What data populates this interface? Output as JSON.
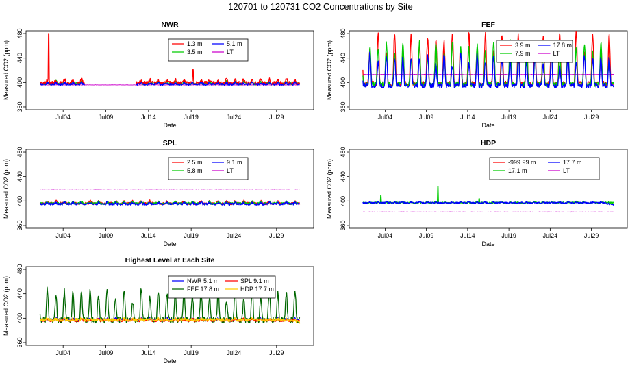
{
  "page_title": "120701  to  120731 CO2 Concentrations by Site",
  "chart_data": [
    {
      "type": "line",
      "title": "NWR",
      "xlabel": "Date",
      "ylabel": "Measured CO2 (ppm)",
      "x_range_days": [
        0,
        31
      ],
      "x_ticks": [
        {
          "day": 3,
          "label": "Jul04"
        },
        {
          "day": 8,
          "label": "Jul09"
        },
        {
          "day": 13,
          "label": "Jul14"
        },
        {
          "day": 18,
          "label": "Jul19"
        },
        {
          "day": 23,
          "label": "Jul24"
        },
        {
          "day": 28,
          "label": "Jul29"
        }
      ],
      "ylim": [
        360,
        480
      ],
      "y_ticks": [
        360,
        400,
        440,
        480
      ],
      "legend": [
        {
          "label": "1.3 m",
          "color": "#ff0000"
        },
        {
          "label": "5.1 m",
          "color": "#0000ff"
        },
        {
          "label": "3.5 m",
          "color": "#00cc00"
        },
        {
          "label": "LT",
          "color": "#cc00cc"
        }
      ],
      "series": [
        {
          "name": "LT",
          "color": "#cc00cc",
          "base": 396,
          "amp": 0,
          "noise": 0.3,
          "gaps": [],
          "shift": 0
        },
        {
          "name": "3.5 m",
          "color": "#00cc00",
          "base": 398,
          "amp": 4,
          "noise": 2,
          "gaps": [
            [
              5.5,
              11.5
            ]
          ],
          "shift": 0
        },
        {
          "name": "1.3 m",
          "color": "#ff0000",
          "base": 399,
          "amp": 6,
          "noise": 3,
          "gaps": [
            [
              5.5,
              11.5
            ]
          ],
          "shift": 0,
          "spikes": [
            [
              1.3,
              480
            ],
            [
              18.2,
              421
            ]
          ]
        },
        {
          "name": "5.1 m",
          "color": "#0000ff",
          "base": 397,
          "amp": 3,
          "noise": 1.8,
          "gaps": [
            [
              5.5,
              11.5
            ]
          ],
          "shift": 0
        }
      ]
    },
    {
      "type": "line",
      "title": "FEF",
      "xlabel": "Date",
      "ylabel": "Measured CO2 (ppm)",
      "x_range_days": [
        0,
        31
      ],
      "x_ticks": [
        {
          "day": 3,
          "label": "Jul04"
        },
        {
          "day": 8,
          "label": "Jul09"
        },
        {
          "day": 13,
          "label": "Jul14"
        },
        {
          "day": 18,
          "label": "Jul19"
        },
        {
          "day": 23,
          "label": "Jul24"
        },
        {
          "day": 28,
          "label": "Jul29"
        }
      ],
      "ylim": [
        360,
        480
      ],
      "y_ticks": [
        360,
        400,
        440,
        480
      ],
      "legend": [
        {
          "label": "3.9 m",
          "color": "#ff0000"
        },
        {
          "label": "17.8 m",
          "color": "#0000ff"
        },
        {
          "label": "7.9 m",
          "color": "#00cc00"
        },
        {
          "label": "LT",
          "color": "#cc00cc"
        }
      ],
      "series": [
        {
          "name": "LT",
          "color": "#cc00cc",
          "base": 413,
          "amp": 0,
          "noise": 0.4,
          "gaps": [],
          "shift": 0
        },
        {
          "name": "3.9 m",
          "color": "#ff0000",
          "base": 398,
          "amp": 85,
          "noise": 4,
          "gaps": [],
          "shift": 0
        },
        {
          "name": "7.9 m",
          "color": "#00cc00",
          "base": 397,
          "amp": 70,
          "noise": 4,
          "gaps": [],
          "shift": 0
        },
        {
          "name": "17.8 m",
          "color": "#0000ff",
          "base": 395,
          "amp": 52,
          "noise": 4,
          "gaps": [],
          "shift": 0
        }
      ]
    },
    {
      "type": "line",
      "title": "SPL",
      "xlabel": "Date",
      "ylabel": "Measured CO2 (ppm)",
      "x_range_days": [
        0,
        31
      ],
      "x_ticks": [
        {
          "day": 3,
          "label": "Jul04"
        },
        {
          "day": 8,
          "label": "Jul09"
        },
        {
          "day": 13,
          "label": "Jul14"
        },
        {
          "day": 18,
          "label": "Jul19"
        },
        {
          "day": 23,
          "label": "Jul24"
        },
        {
          "day": 28,
          "label": "Jul29"
        }
      ],
      "ylim": [
        360,
        480
      ],
      "y_ticks": [
        360,
        400,
        440,
        480
      ],
      "legend": [
        {
          "label": "2.5 m",
          "color": "#ff0000"
        },
        {
          "label": "9.1 m",
          "color": "#0000ff"
        },
        {
          "label": "5.8 m",
          "color": "#00cc00"
        },
        {
          "label": "LT",
          "color": "#cc00cc"
        }
      ],
      "series": [
        {
          "name": "LT",
          "color": "#cc00cc",
          "base": 418,
          "amp": 0,
          "noise": 0.3,
          "gaps": [],
          "shift": 0
        },
        {
          "name": "2.5 m",
          "color": "#ff0000",
          "base": 396,
          "amp": 4,
          "noise": 2,
          "gaps": [],
          "shift": 0
        },
        {
          "name": "5.8 m",
          "color": "#00cc00",
          "base": 396,
          "amp": 3,
          "noise": 1.8,
          "gaps": [],
          "shift": 0
        },
        {
          "name": "9.1 m",
          "color": "#0000ff",
          "base": 395,
          "amp": 3,
          "noise": 1.8,
          "gaps": [],
          "shift": 0
        }
      ]
    },
    {
      "type": "line",
      "title": "HDP",
      "xlabel": "Date",
      "ylabel": "Measured CO2 (ppm)",
      "x_range_days": [
        0,
        31
      ],
      "x_ticks": [
        {
          "day": 3,
          "label": "Jul04"
        },
        {
          "day": 8,
          "label": "Jul09"
        },
        {
          "day": 13,
          "label": "Jul14"
        },
        {
          "day": 18,
          "label": "Jul19"
        },
        {
          "day": 23,
          "label": "Jul24"
        },
        {
          "day": 28,
          "label": "Jul29"
        }
      ],
      "ylim": [
        360,
        480
      ],
      "y_ticks": [
        360,
        400,
        440,
        480
      ],
      "legend": [
        {
          "label": "-999.99 m",
          "color": "#ff0000"
        },
        {
          "label": "17.7 m",
          "color": "#0000ff"
        },
        {
          "label": "17.1 m",
          "color": "#00cc00"
        },
        {
          "label": "LT",
          "color": "#cc00cc"
        }
      ],
      "series": [
        {
          "name": "LT",
          "color": "#cc00cc",
          "base": 382,
          "amp": 0,
          "noise": 0.3,
          "gaps": [],
          "shift": 0
        },
        {
          "name": "17.1 m",
          "color": "#00cc00",
          "base": 397,
          "amp": 1.5,
          "noise": 1.4,
          "gaps": [],
          "shift": 0,
          "spikes": [
            [
              2.5,
              409
            ],
            [
              9.4,
              424
            ],
            [
              14.4,
              404
            ]
          ]
        },
        {
          "name": "17.7 m",
          "color": "#0000ff",
          "base": 397,
          "amp": 1.5,
          "noise": 1.3,
          "gaps": [],
          "shift": 0,
          "drift": -5
        }
      ]
    },
    {
      "type": "line",
      "title": "Highest Level at Each Site",
      "xlabel": "Date",
      "ylabel": "Measured CO2 (ppm)",
      "x_range_days": [
        0,
        31
      ],
      "x_ticks": [
        {
          "day": 3,
          "label": "Jul04"
        },
        {
          "day": 8,
          "label": "Jul09"
        },
        {
          "day": 13,
          "label": "Jul14"
        },
        {
          "day": 18,
          "label": "Jul19"
        },
        {
          "day": 23,
          "label": "Jul24"
        },
        {
          "day": 28,
          "label": "Jul29"
        }
      ],
      "ylim": [
        360,
        480
      ],
      "y_ticks": [
        360,
        400,
        440,
        480
      ],
      "legend": [
        {
          "label": "NWR 5.1 m",
          "color": "#0000ff"
        },
        {
          "label": "SPL  9.1 m",
          "color": "#ff0000"
        },
        {
          "label": "FEF 17.8 m",
          "color": "#006600"
        },
        {
          "label": "HDP  17.7 m",
          "color": "#ffcc00"
        }
      ],
      "series": [
        {
          "name": "FEF 17.8 m",
          "color": "#006600",
          "base": 397,
          "amp": 52,
          "noise": 5,
          "gaps": [],
          "shift": 0
        },
        {
          "name": "NWR 5.1 m",
          "color": "#0000ff",
          "base": 397,
          "amp": 3,
          "noise": 1.8,
          "gaps": [],
          "shift": 0.3
        },
        {
          "name": "SPL  9.1 m",
          "color": "#ff0000",
          "base": 396,
          "amp": 3,
          "noise": 1.8,
          "gaps": [],
          "shift": 0.6
        },
        {
          "name": "HDP  17.7 m",
          "color": "#ffcc00",
          "base": 397,
          "amp": 2,
          "noise": 2.5,
          "gaps": [],
          "shift": 0.9,
          "drift": -5
        }
      ]
    }
  ]
}
